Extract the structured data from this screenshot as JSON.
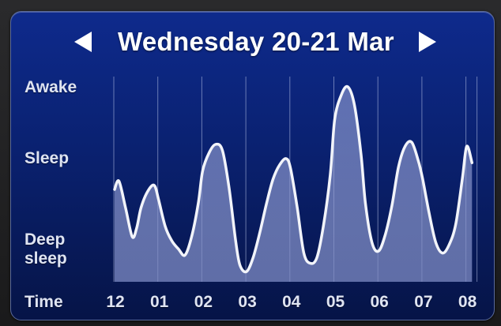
{
  "header": {
    "title": "Wednesday 20-21 Mar",
    "prev_icon": "triangle-left-icon",
    "next_icon": "triangle-right-icon"
  },
  "chart_data": {
    "type": "area",
    "y_levels": [
      "Awake",
      "Sleep",
      "Deep\nsleep"
    ],
    "x_axis_label": "Time",
    "tick_labels": [
      "12",
      "01",
      "02",
      "03",
      "04",
      "05",
      "06",
      "07",
      "08"
    ],
    "y_range": [
      0,
      100
    ],
    "grid": "vertical",
    "colors": {
      "line": "#f2f4fa",
      "fill": "#8f9bc9",
      "gridline": "#b8c2e6"
    },
    "series": [
      {
        "x": [
          0.0,
          0.1,
          0.25,
          0.4,
          0.5,
          0.6,
          0.75,
          0.9,
          1.0,
          1.15,
          1.3,
          1.45,
          1.6,
          1.75,
          1.9,
          2.0,
          2.15,
          2.3,
          2.45,
          2.6,
          2.75,
          2.85,
          3.0,
          3.15,
          3.3,
          3.45,
          3.6,
          3.75,
          3.9,
          4.0,
          4.15,
          4.3,
          4.45,
          4.6,
          4.75,
          4.9,
          5.0,
          5.15,
          5.3,
          5.45,
          5.6,
          5.7,
          5.85,
          6.0,
          6.15,
          6.3,
          6.45,
          6.6,
          6.75,
          6.9,
          7.0,
          7.15,
          7.3,
          7.45,
          7.6,
          7.75,
          7.9,
          8.0,
          8.12
        ],
        "values": [
          45,
          49,
          36,
          22,
          26,
          36,
          44,
          47,
          40,
          27,
          20,
          16,
          13,
          22,
          38,
          54,
          63,
          67,
          64,
          46,
          20,
          8,
          5,
          12,
          24,
          38,
          50,
          57,
          60,
          55,
          36,
          14,
          9,
          12,
          28,
          52,
          79,
          91,
          95,
          86,
          62,
          38,
          19,
          15,
          23,
          37,
          56,
          66,
          68,
          59,
          50,
          33,
          19,
          14,
          18,
          28,
          50,
          66,
          58
        ]
      }
    ]
  }
}
